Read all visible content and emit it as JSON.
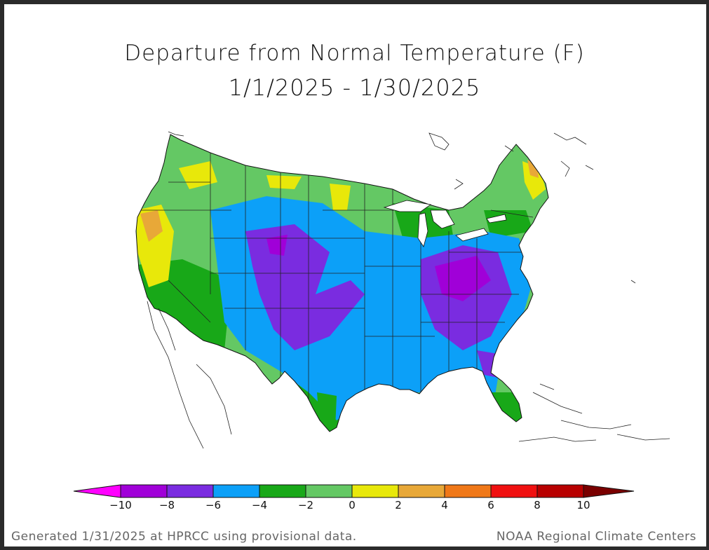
{
  "title_line1": "Departure from Normal Temperature (F)",
  "title_line2": "1/1/2025 - 1/30/2025",
  "footer_left": "Generated 1/31/2025 at HPRCC using provisional data.",
  "footer_right": "NOAA Regional Climate Centers",
  "legend": {
    "ticks": [
      "−10",
      "−8",
      "−6",
      "−4",
      "−2",
      "0",
      "2",
      "4",
      "6",
      "8",
      "10"
    ],
    "colors": {
      "below_-10": "#ff00ff",
      "-10_-8": "#a000d8",
      "-8_-6": "#7a2ce0",
      "-6_-4": "#0ca0f8",
      "-4_-2": "#18a818",
      "-2_0": "#64c864",
      "0_2": "#e8e80a",
      "2_4": "#e8a838",
      "4_6": "#f07818",
      "6_8": "#f01010",
      "8_10": "#b80000",
      "above_10": "#7a0000"
    }
  },
  "map": {
    "region": "Contiguous United States",
    "variable": "Temperature departure from normal",
    "units": "F"
  }
}
